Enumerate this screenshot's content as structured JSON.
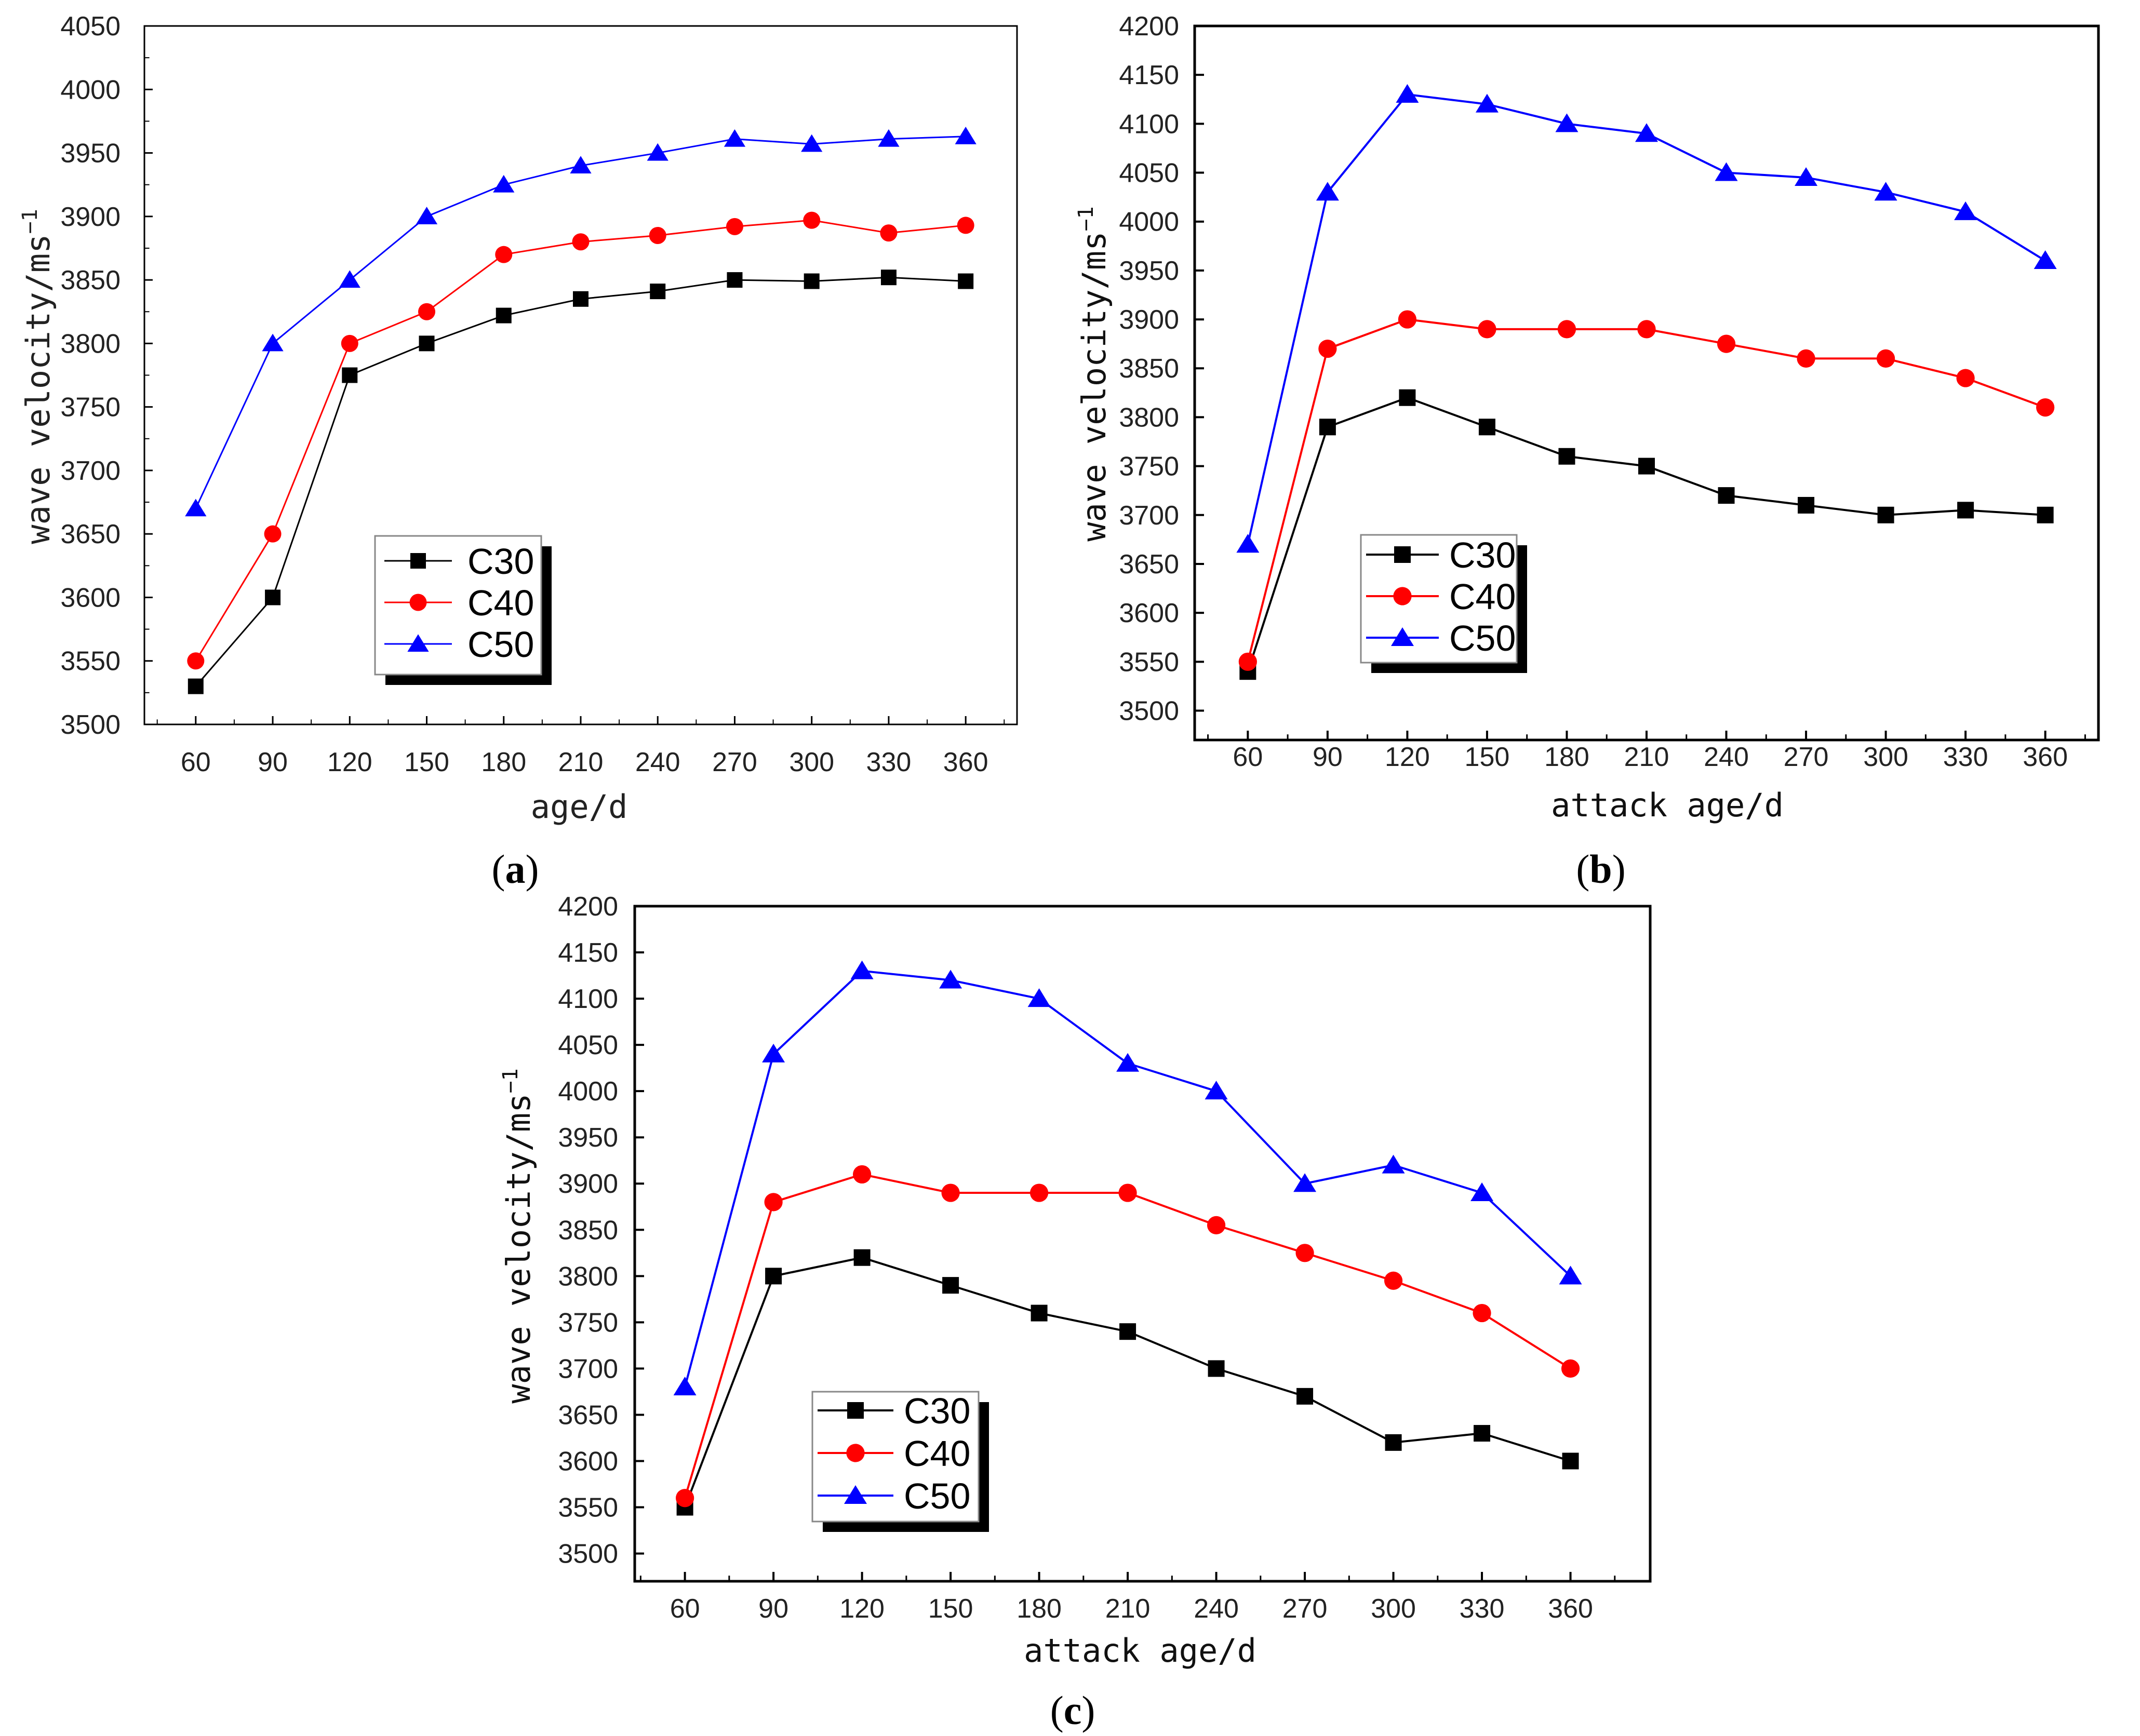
{
  "chart_data": [
    {
      "type": "line",
      "panel_label": "a",
      "title": "",
      "xlabel": "age/d",
      "ylabel": "wave velocity/ms",
      "ylabel_superscript": "−1",
      "categories": [
        "60",
        "90",
        "120",
        "150",
        "180",
        "210",
        "240",
        "270",
        "300",
        "330",
        "360"
      ],
      "x": [
        60,
        90,
        120,
        150,
        180,
        210,
        240,
        270,
        300,
        330,
        360
      ],
      "xlim": [
        40,
        380
      ],
      "ylim": [
        3500,
        4050
      ],
      "yticks": [
        3500,
        3550,
        3600,
        3650,
        3700,
        3750,
        3800,
        3850,
        3900,
        3950,
        4000,
        4050
      ],
      "grid": false,
      "legend_position": "center-left",
      "series": [
        {
          "name": "C30",
          "color": "#000000",
          "marker": "square",
          "values": [
            3530,
            3600,
            3775,
            3800,
            3822,
            3835,
            3841,
            3850,
            3849,
            3852,
            3849
          ]
        },
        {
          "name": "C40",
          "color": "#ff0000",
          "marker": "circle",
          "values": [
            3550,
            3650,
            3800,
            3825,
            3870,
            3880,
            3885,
            3892,
            3897,
            3887,
            3893
          ]
        },
        {
          "name": "C50",
          "color": "#0000ff",
          "marker": "triangle",
          "values": [
            3670,
            3800,
            3850,
            3900,
            3925,
            3940,
            3950,
            3961,
            3957,
            3961,
            3963
          ]
        }
      ]
    },
    {
      "type": "line",
      "panel_label": "b",
      "title": "",
      "xlabel": "attack age/d",
      "ylabel": "wave velocity/ms",
      "ylabel_superscript": "−1",
      "categories": [
        "60",
        "90",
        "120",
        "150",
        "180",
        "210",
        "240",
        "270",
        "300",
        "330",
        "360"
      ],
      "x": [
        60,
        90,
        120,
        150,
        180,
        210,
        240,
        270,
        300,
        330,
        360
      ],
      "xlim": [
        40,
        380
      ],
      "ylim": [
        3470,
        4200
      ],
      "yticks": [
        3500,
        3550,
        3600,
        3650,
        3700,
        3750,
        3800,
        3850,
        3900,
        3950,
        4000,
        4050,
        4100,
        4150,
        4200
      ],
      "grid": false,
      "legend_position": "bottom-left",
      "series": [
        {
          "name": "C30",
          "color": "#000000",
          "marker": "square",
          "values": [
            3540,
            3790,
            3820,
            3790,
            3760,
            3750,
            3720,
            3710,
            3700,
            3705,
            3700
          ]
        },
        {
          "name": "C40",
          "color": "#ff0000",
          "marker": "circle",
          "values": [
            3550,
            3870,
            3900,
            3890,
            3890,
            3890,
            3875,
            3860,
            3860,
            3840,
            3810
          ]
        },
        {
          "name": "C50",
          "color": "#0000ff",
          "marker": "triangle",
          "values": [
            3670,
            4030,
            4130,
            4120,
            4100,
            4090,
            4050,
            4045,
            4030,
            4010,
            3960
          ]
        }
      ]
    },
    {
      "type": "line",
      "panel_label": "c",
      "title": "",
      "xlabel": "attack age/d",
      "ylabel": "wave velocity/ms",
      "ylabel_superscript": "−1",
      "categories": [
        "60",
        "90",
        "120",
        "150",
        "180",
        "210",
        "240",
        "270",
        "300",
        "330",
        "360"
      ],
      "x": [
        60,
        90,
        120,
        150,
        180,
        210,
        240,
        270,
        300,
        330,
        360
      ],
      "xlim": [
        43,
        387
      ],
      "ylim": [
        3470,
        4200
      ],
      "yticks": [
        3500,
        3550,
        3600,
        3650,
        3700,
        3750,
        3800,
        3850,
        3900,
        3950,
        4000,
        4050,
        4100,
        4150,
        4200
      ],
      "grid": false,
      "legend_position": "bottom-left",
      "series": [
        {
          "name": "C30",
          "color": "#000000",
          "marker": "square",
          "values": [
            3550,
            3800,
            3820,
            3790,
            3760,
            3740,
            3700,
            3670,
            3620,
            3630,
            3600
          ]
        },
        {
          "name": "C40",
          "color": "#ff0000",
          "marker": "circle",
          "values": [
            3560,
            3880,
            3910,
            3890,
            3890,
            3890,
            3855,
            3825,
            3795,
            3760,
            3700
          ]
        },
        {
          "name": "C50",
          "color": "#0000ff",
          "marker": "triangle",
          "values": [
            3680,
            4040,
            4130,
            4120,
            4100,
            4030,
            4000,
            3900,
            3920,
            3890,
            3800
          ]
        }
      ]
    }
  ]
}
